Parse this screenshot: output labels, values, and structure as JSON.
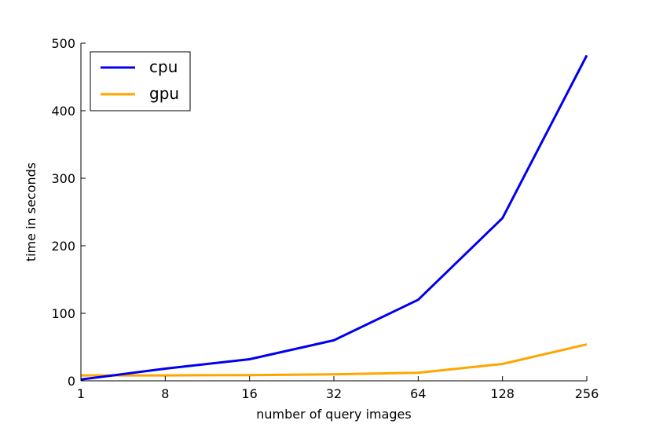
{
  "chart_data": {
    "type": "line",
    "title": "",
    "xlabel": "number of query images",
    "ylabel": "time in seconds",
    "x_scale": "categorical",
    "categories": [
      "1",
      "8",
      "16",
      "32",
      "64",
      "128",
      "256"
    ],
    "ylim": [
      0,
      500
    ],
    "yticks": [
      0,
      100,
      200,
      300,
      400,
      500
    ],
    "grid": false,
    "legend_position": "top-left",
    "series": [
      {
        "name": "cpu",
        "color": "#0000ee",
        "values": [
          2,
          18,
          32,
          60,
          120,
          241,
          482
        ]
      },
      {
        "name": "gpu",
        "color": "#ffa500",
        "values": [
          8,
          8,
          8.5,
          9.5,
          12,
          25,
          54
        ]
      }
    ]
  }
}
